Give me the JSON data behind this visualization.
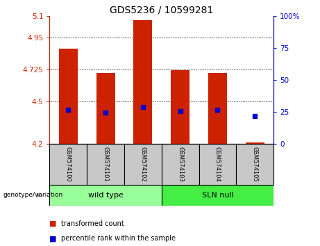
{
  "title": "GDS5236 / 10599281",
  "samples": [
    "GSM574100",
    "GSM574101",
    "GSM574102",
    "GSM574103",
    "GSM574104",
    "GSM574105"
  ],
  "bar_bottoms": [
    4.2,
    4.2,
    4.2,
    4.2,
    4.2,
    4.2
  ],
  "bar_tops": [
    4.87,
    4.7,
    5.07,
    4.72,
    4.7,
    4.21
  ],
  "blue_dot_y": [
    4.44,
    4.42,
    4.46,
    4.43,
    4.44,
    4.395
  ],
  "bar_color": "#cc2200",
  "dot_color": "#0000cc",
  "ylim_left": [
    4.2,
    5.1
  ],
  "ylim_right": [
    0,
    100
  ],
  "yticks_left": [
    4.2,
    4.5,
    4.725,
    4.95,
    5.1
  ],
  "ytick_labels_left": [
    "4.2",
    "4.5",
    "4.725",
    "4.95",
    "5.1"
  ],
  "ytick_labels_right": [
    "0",
    "25",
    "50",
    "75",
    "100%"
  ],
  "yticks_right": [
    0,
    25,
    50,
    75,
    100
  ],
  "hlines": [
    4.95,
    4.725,
    4.5
  ],
  "groups": [
    {
      "label": "wild type",
      "samples": [
        0,
        1,
        2
      ],
      "color": "#99ff99"
    },
    {
      "label": "SLN null",
      "samples": [
        3,
        4,
        5
      ],
      "color": "#44ee44"
    }
  ],
  "group_label": "genotype/variation",
  "legend_items": [
    {
      "label": "transformed count",
      "color": "#cc2200"
    },
    {
      "label": "percentile rank within the sample",
      "color": "#0000cc"
    }
  ],
  "left_tick_color": "#cc2200",
  "right_tick_color": "#0000cc",
  "bar_width": 0.5,
  "label_bg": "#c8c8c8"
}
